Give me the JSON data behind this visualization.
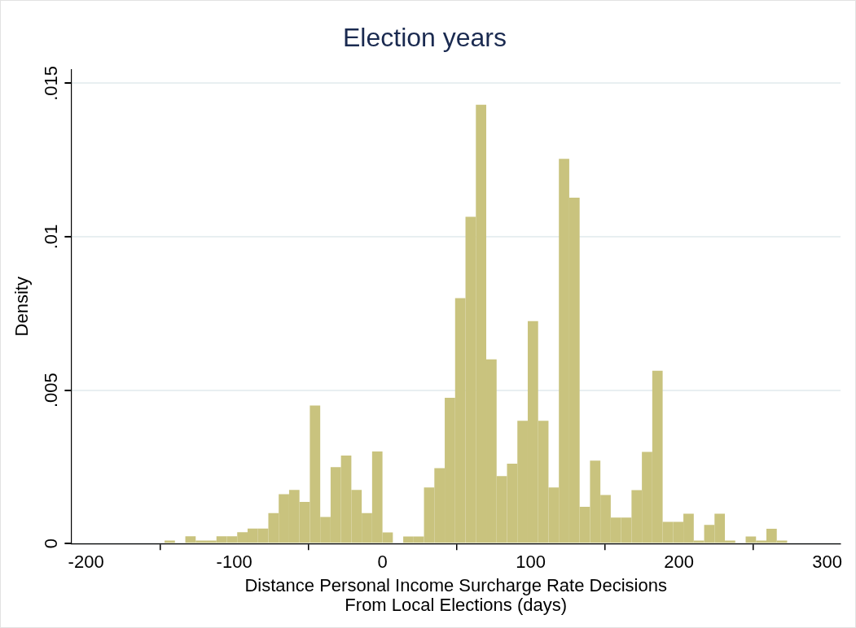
{
  "chart_data": {
    "type": "histogram",
    "title": "Election years",
    "xlabel": "Distance Personal Income Surcharge Rate Decisions\nFrom Local Elections (days)",
    "ylabel": "Density",
    "bins": [
      -147,
      -140,
      -133,
      -126,
      -119,
      -112,
      -105,
      -98,
      -91,
      -84,
      -77,
      -70,
      -63,
      -56,
      -49,
      -42,
      -35,
      -28,
      -21,
      -14,
      -7,
      0,
      7,
      14,
      21,
      28,
      35,
      42,
      49,
      56,
      63,
      70,
      77,
      84,
      91,
      98,
      105,
      112,
      119,
      126,
      133,
      140,
      147,
      154,
      161,
      168,
      175,
      182,
      189,
      196,
      203,
      210,
      217,
      224,
      231,
      238,
      245,
      252,
      259,
      266,
      273
    ],
    "values": [
      0.0001,
      0,
      0.00024,
      0.0001,
      0.0001,
      0.00024,
      0.00024,
      0.00037,
      0.00049,
      0.00049,
      0.00099,
      0.00161,
      0.00175,
      0.00136,
      0.0045,
      0.00087,
      0.00249,
      0.00287,
      0.00175,
      0.00099,
      0.003,
      0.00036,
      0,
      0.00023,
      0.00023,
      0.00183,
      0.00246,
      0.00475,
      0.008,
      0.01065,
      0.0143,
      0.006,
      0.0022,
      0.0026,
      0.004,
      0.00725,
      0.004,
      0.00183,
      0.01254,
      0.01127,
      0.0012,
      0.0027,
      0.00158,
      0.00085,
      0.00085,
      0.00174,
      0.00299,
      0.00563,
      0.00071,
      0.00071,
      0.00097,
      0.0001,
      0.00061,
      0.00097,
      0.0001,
      0,
      0.00023,
      0.0001,
      0.00048,
      0.0001
    ],
    "color": "#c9c37e",
    "xlim": [
      -210,
      309
    ],
    "xticks": [
      -200,
      -100,
      0,
      100,
      200,
      300
    ],
    "ylim": [
      0,
      0.01545
    ],
    "yticks": [
      {
        "value": 0,
        "label": "0"
      },
      {
        "value": 0.005,
        "label": ".005"
      },
      {
        "value": 0.01,
        "label": ".01"
      },
      {
        "value": 0.015,
        "label": ".015"
      }
    ],
    "grid": "y"
  }
}
